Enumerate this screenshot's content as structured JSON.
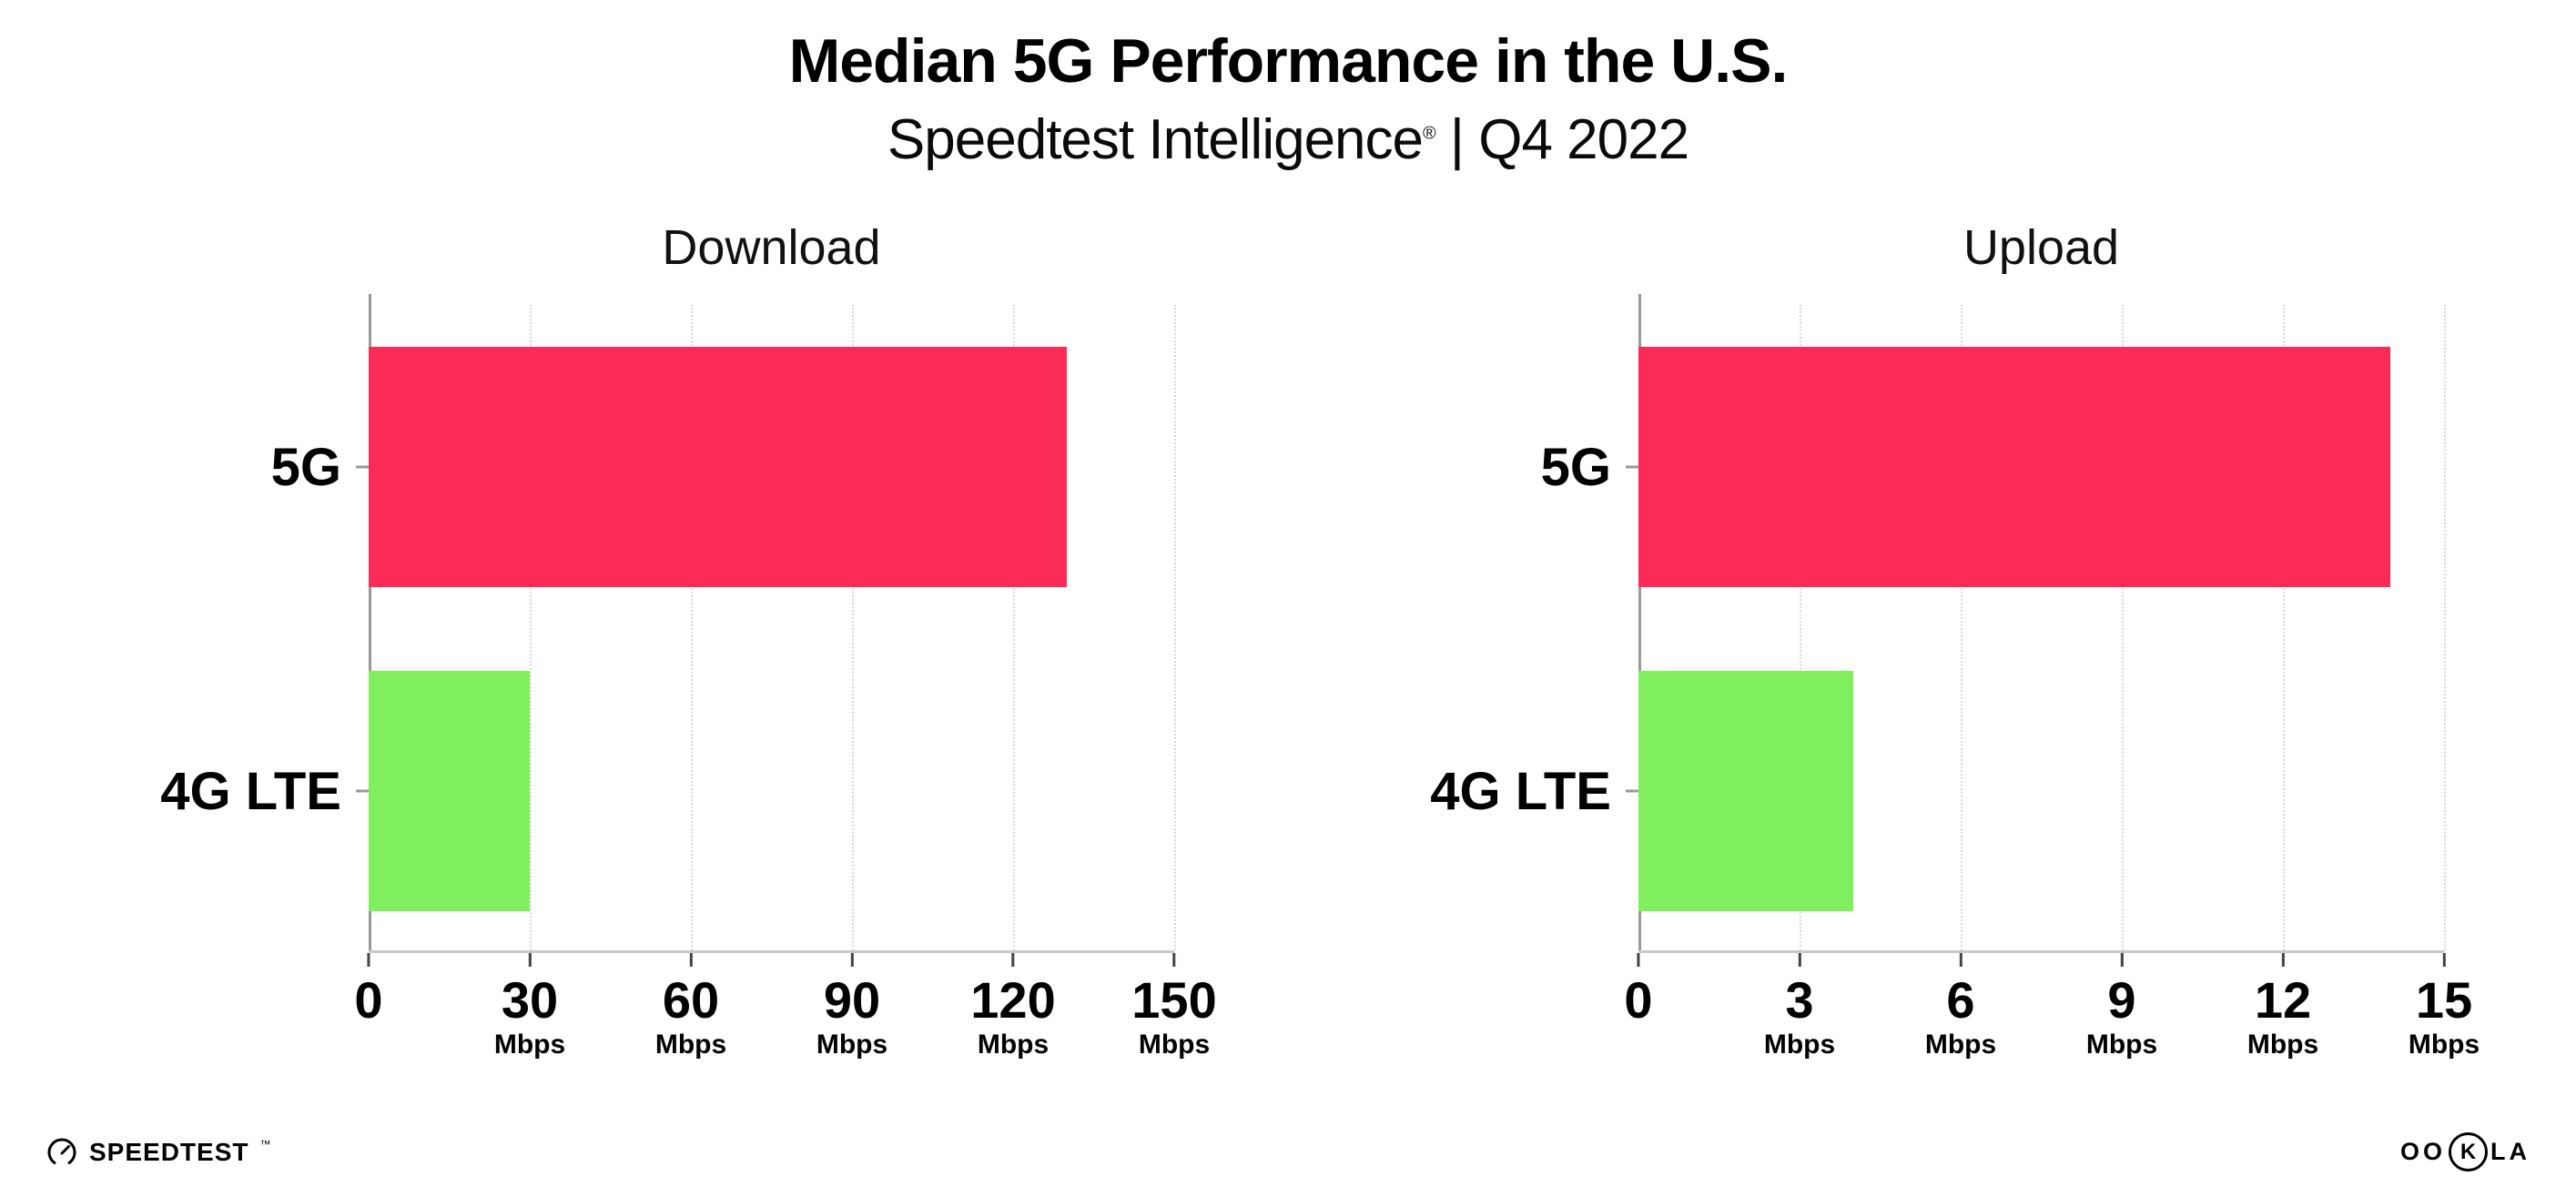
{
  "header": {
    "title": "Median 5G Performance in the U.S.",
    "subtitle_brand": "Speedtest Intelligence",
    "subtitle_reg": "®",
    "subtitle_rest": " | Q4 2022"
  },
  "chart_data": [
    {
      "type": "bar",
      "orientation": "horizontal",
      "title": "Download",
      "categories": [
        "5G",
        "4G LTE"
      ],
      "values": [
        130,
        30
      ],
      "unit": "Mbps",
      "xlim": [
        0,
        150
      ],
      "xticks": [
        0,
        30,
        60,
        90,
        120,
        150
      ],
      "bar_colors": [
        "#FB2B57",
        "#80EF5E"
      ],
      "grid": "dotted-vertical",
      "legend": "none"
    },
    {
      "type": "bar",
      "orientation": "horizontal",
      "title": "Upload",
      "categories": [
        "5G",
        "4G LTE"
      ],
      "values": [
        14,
        4
      ],
      "unit": "Mbps",
      "xlim": [
        0,
        15
      ],
      "xticks": [
        0,
        3,
        6,
        9,
        12,
        15
      ],
      "bar_colors": [
        "#FB2B57",
        "#80EF5E"
      ],
      "grid": "dotted-vertical",
      "legend": "none"
    }
  ],
  "footer": {
    "speedtest": "SPEEDTEST",
    "speedtest_tm": "™",
    "ookla_prefix": "OO",
    "ookla_k": "K",
    "ookla_suffix": "LA"
  }
}
